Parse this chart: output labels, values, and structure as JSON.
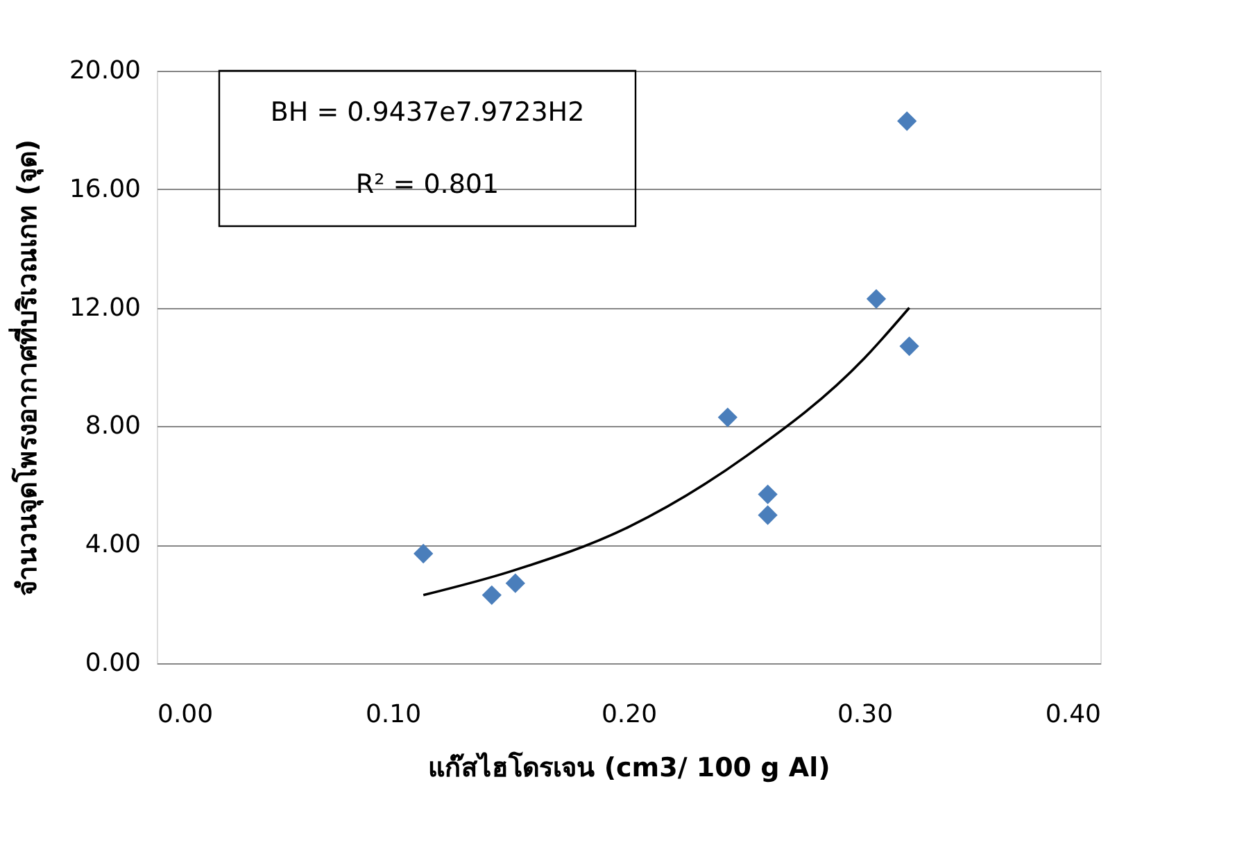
{
  "chart_data": {
    "type": "scatter",
    "xlabel": "แก๊สไฮโดรเจน (cm3/ 100 g Al)",
    "ylabel": "จำนวนจุดโพรงอากาศที่บริเวณเกท (จุด)",
    "annotations": [
      "BH = 0.9437e7.9723H2",
      "R² = 0.801"
    ],
    "series": [
      {
        "color": "#4a7ebb",
        "marker": "diamond",
        "x": [
          0.113,
          0.142,
          0.152,
          0.242,
          0.259,
          0.259,
          0.305,
          0.319,
          0.318
        ],
        "values": [
          3.7,
          2.3,
          2.7,
          8.3,
          5.7,
          5.0,
          12.3,
          10.7,
          18.3
        ]
      },
      {
        "type": "line",
        "color": "#000000",
        "x": [
          0.113,
          0.15,
          0.2,
          0.25,
          0.3,
          0.319
        ],
        "values": [
          2.3,
          3.1,
          4.6,
          7.0,
          10.3,
          12.0
        ]
      }
    ],
    "xlim": [
      0,
      0.4
    ],
    "ylim": [
      0,
      20
    ],
    "xticks": [
      {
        "value": 0,
        "label": "0.00"
      },
      {
        "value": 0.1,
        "label": "0.10"
      },
      {
        "value": 0.2,
        "label": "0.20"
      },
      {
        "value": 0.3,
        "label": "0.30"
      },
      {
        "value": 0.4,
        "label": "0.40"
      }
    ],
    "yticks": [
      {
        "value": 0,
        "label": "0.00"
      },
      {
        "value": 4,
        "label": "4.00"
      },
      {
        "value": 8,
        "label": "8.00"
      },
      {
        "value": 12,
        "label": "12.00"
      },
      {
        "value": 16,
        "label": "16.00"
      },
      {
        "value": 20,
        "label": "20.00"
      }
    ],
    "grid": "y"
  }
}
